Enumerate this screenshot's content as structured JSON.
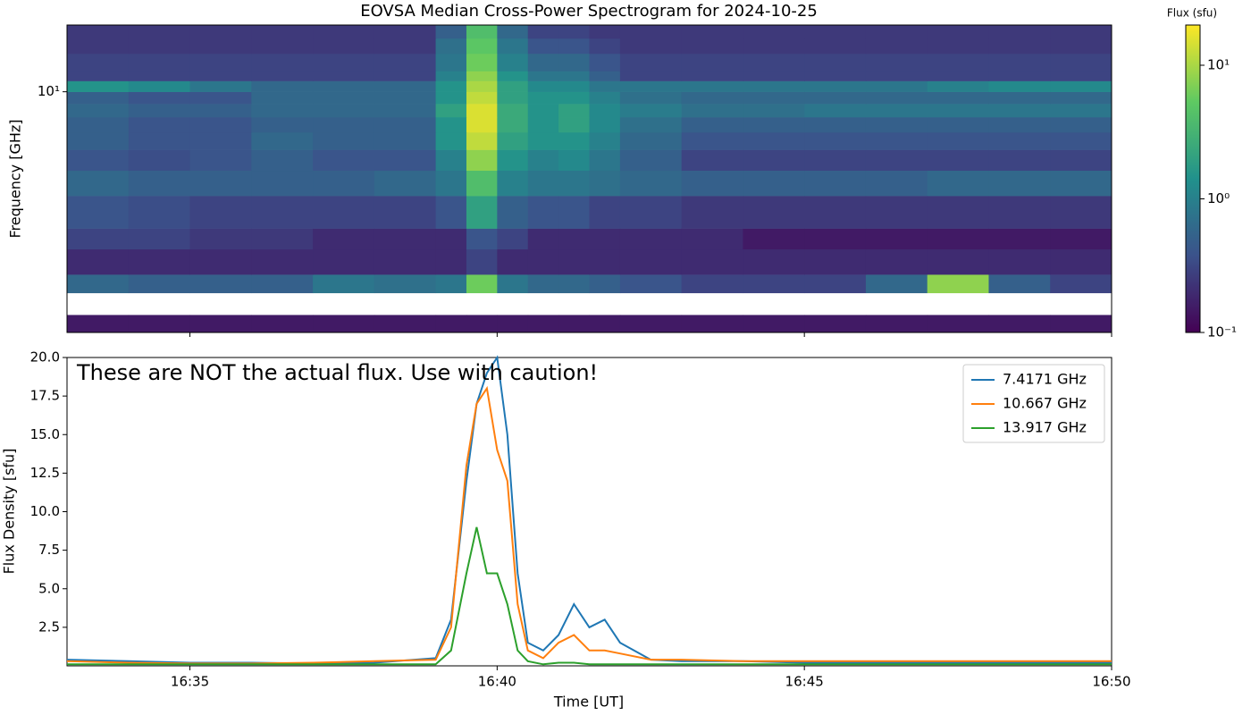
{
  "chart_data": [
    {
      "type": "heatmap",
      "title": "EOVSA Median Cross-Power Spectrogram for 2024-10-25",
      "ylabel": "Frequency [GHz]",
      "x_edges": [
        "16:33:00",
        "16:34:00",
        "16:35:00",
        "16:36:00",
        "16:37:00",
        "16:38:00",
        "16:39:00",
        "16:39:30",
        "16:40:00",
        "16:40:30",
        "16:41:00",
        "16:41:30",
        "16:42:00",
        "16:43:00",
        "16:44:00",
        "16:45:00",
        "16:46:00",
        "16:47:00",
        "16:48:00",
        "16:49:00",
        "16:50:00"
      ],
      "y_edges": [
        1.2,
        1.4,
        1.7,
        2,
        2.5,
        3,
        4,
        5,
        6,
        7,
        8,
        9,
        10,
        11,
        12,
        14,
        16,
        18
      ],
      "z": [
        [
          0.15,
          0.15,
          0.15,
          0.15,
          0.15,
          0.15,
          0.15,
          0.15,
          0.15,
          0.15,
          0.15,
          0.15,
          0.15,
          0.15,
          0.15,
          0.15,
          0.15,
          0.15,
          0.15,
          0.15
        ],
        [
          null,
          null,
          null,
          null,
          null,
          null,
          null,
          null,
          null,
          null,
          null,
          null,
          null,
          null,
          null,
          null,
          null,
          null,
          null,
          null
        ],
        [
          0.6,
          0.5,
          0.5,
          0.5,
          0.8,
          0.7,
          0.8,
          6,
          0.8,
          0.6,
          0.6,
          0.5,
          0.4,
          0.3,
          0.3,
          0.3,
          0.6,
          8,
          0.5,
          0.3
        ],
        [
          0.2,
          0.2,
          0.2,
          0.2,
          0.2,
          0.2,
          0.2,
          0.3,
          0.2,
          0.2,
          0.2,
          0.2,
          0.2,
          0.2,
          0.2,
          0.2,
          0.2,
          0.2,
          0.2,
          0.2
        ],
        [
          0.3,
          0.3,
          0.25,
          0.25,
          0.2,
          0.2,
          0.2,
          0.4,
          0.3,
          0.2,
          0.2,
          0.2,
          0.2,
          0.2,
          0.15,
          0.15,
          0.15,
          0.15,
          0.15,
          0.15
        ],
        [
          0.4,
          0.35,
          0.3,
          0.3,
          0.3,
          0.3,
          0.4,
          2,
          0.5,
          0.4,
          0.4,
          0.3,
          0.3,
          0.25,
          0.25,
          0.25,
          0.25,
          0.25,
          0.25,
          0.25
        ],
        [
          0.6,
          0.5,
          0.5,
          0.5,
          0.5,
          0.6,
          0.8,
          4,
          1,
          0.8,
          0.8,
          0.7,
          0.6,
          0.5,
          0.5,
          0.5,
          0.5,
          0.6,
          0.6,
          0.6
        ],
        [
          0.4,
          0.35,
          0.4,
          0.5,
          0.4,
          0.4,
          1,
          8,
          1.5,
          1,
          1.2,
          0.8,
          0.5,
          0.3,
          0.3,
          0.3,
          0.3,
          0.3,
          0.3,
          0.3
        ],
        [
          0.5,
          0.4,
          0.4,
          0.6,
          0.5,
          0.5,
          1.5,
          12,
          2,
          1.5,
          1.5,
          1,
          0.6,
          0.4,
          0.4,
          0.4,
          0.4,
          0.4,
          0.4,
          0.4
        ],
        [
          0.5,
          0.4,
          0.4,
          0.5,
          0.5,
          0.5,
          1.5,
          15,
          2.5,
          1.5,
          2,
          1.2,
          0.7,
          0.5,
          0.5,
          0.5,
          0.5,
          0.5,
          0.5,
          0.5
        ],
        [
          0.6,
          0.5,
          0.5,
          0.6,
          0.6,
          0.6,
          2,
          15,
          2.5,
          1.5,
          2,
          1.2,
          0.9,
          0.7,
          0.7,
          0.8,
          0.8,
          0.8,
          0.8,
          0.8
        ],
        [
          0.5,
          0.4,
          0.4,
          0.6,
          0.6,
          0.6,
          1.5,
          12,
          2,
          1.5,
          1.5,
          1,
          0.7,
          0.6,
          0.6,
          0.6,
          0.6,
          0.6,
          0.6,
          0.6
        ],
        [
          1.5,
          1.2,
          0.8,
          0.6,
          0.6,
          0.6,
          1.5,
          10,
          2,
          1.2,
          1.2,
          0.8,
          0.8,
          0.8,
          0.8,
          0.8,
          0.8,
          1,
          1.2,
          1.2
        ],
        [
          0.3,
          0.3,
          0.3,
          0.3,
          0.3,
          0.3,
          1,
          8,
          1.5,
          0.8,
          0.8,
          0.5,
          0.3,
          0.3,
          0.3,
          0.3,
          0.3,
          0.3,
          0.3,
          0.3
        ],
        [
          0.3,
          0.3,
          0.3,
          0.3,
          0.3,
          0.3,
          0.8,
          6,
          1,
          0.6,
          0.6,
          0.4,
          0.3,
          0.3,
          0.3,
          0.3,
          0.3,
          0.3,
          0.3,
          0.3
        ],
        [
          0.25,
          0.25,
          0.25,
          0.25,
          0.25,
          0.25,
          0.7,
          5,
          0.8,
          0.4,
          0.4,
          0.3,
          0.25,
          0.25,
          0.25,
          0.25,
          0.25,
          0.25,
          0.25,
          0.25
        ],
        [
          0.25,
          0.25,
          0.25,
          0.25,
          0.25,
          0.25,
          0.5,
          4,
          0.6,
          0.3,
          0.3,
          0.25,
          0.25,
          0.25,
          0.25,
          0.25,
          0.25,
          0.25,
          0.25,
          0.25
        ]
      ],
      "xlim": [
        "16:33:00",
        "16:50:00"
      ],
      "xticks": [
        "16:35:00",
        "16:40:00",
        "16:45:00",
        "16:50:00"
      ],
      "xtick_labels": false,
      "ylim": [
        1.2,
        18
      ],
      "yscale": "log",
      "yticks": [
        {
          "value": 10,
          "label": "10¹"
        }
      ],
      "colormap": "viridis",
      "colorbar": {
        "title": "Flux (sfu)",
        "scale": "log",
        "lim": [
          0.1,
          20
        ],
        "ticks": [
          {
            "value": 0.1,
            "label": "10⁻¹"
          },
          {
            "value": 1,
            "label": "10⁰"
          },
          {
            "value": 10,
            "label": "10¹"
          }
        ]
      }
    },
    {
      "type": "line",
      "annotation": "These are NOT the actual flux. Use with caution!",
      "xlabel": "Time [UT]",
      "ylabel": "Flux Density [sfu]",
      "x": [
        "16:33:00",
        "16:34:00",
        "16:35:00",
        "16:36:00",
        "16:37:00",
        "16:38:00",
        "16:39:00",
        "16:39:15",
        "16:39:30",
        "16:39:40",
        "16:39:50",
        "16:40:00",
        "16:40:10",
        "16:40:20",
        "16:40:30",
        "16:40:45",
        "16:41:00",
        "16:41:15",
        "16:41:30",
        "16:41:45",
        "16:42:00",
        "16:42:30",
        "16:43:00",
        "16:44:00",
        "16:45:00",
        "16:46:00",
        "16:47:00",
        "16:48:00",
        "16:49:00",
        "16:50:00"
      ],
      "series": [
        {
          "name": "7.4171 GHz",
          "color": "#1f77b4",
          "values": [
            0.4,
            0.3,
            0.2,
            0.2,
            0.15,
            0.2,
            0.5,
            3,
            12,
            17,
            19,
            20,
            15,
            6,
            1.5,
            1,
            2,
            4,
            2.5,
            3,
            1.5,
            0.4,
            0.3,
            0.3,
            0.2,
            0.2,
            0.2,
            0.2,
            0.2,
            0.2
          ]
        },
        {
          "name": "10.667 GHz",
          "color": "#ff7f0e",
          "values": [
            0.3,
            0.2,
            0.15,
            0.15,
            0.2,
            0.3,
            0.4,
            2.5,
            13,
            17,
            18,
            14,
            12,
            4,
            1,
            0.5,
            1.5,
            2,
            1,
            1,
            0.8,
            0.4,
            0.4,
            0.3,
            0.3,
            0.3,
            0.3,
            0.3,
            0.3,
            0.3
          ]
        },
        {
          "name": "13.917 GHz",
          "color": "#2ca02c",
          "values": [
            0.1,
            0.1,
            0.1,
            0.1,
            0.1,
            0.1,
            0.1,
            1,
            6,
            9,
            6,
            6,
            4,
            1,
            0.3,
            0.1,
            0.2,
            0.2,
            0.1,
            0.1,
            0.1,
            0.1,
            0.1,
            0.1,
            0.1,
            0.1,
            0.1,
            0.1,
            0.1,
            0.1
          ]
        }
      ],
      "xlim": [
        "16:33:00",
        "16:50:00"
      ],
      "xticks": [
        {
          "value": "16:35:00",
          "label": "16:35"
        },
        {
          "value": "16:40:00",
          "label": "16:40"
        },
        {
          "value": "16:45:00",
          "label": "16:45"
        },
        {
          "value": "16:50:00",
          "label": "16:50"
        }
      ],
      "ylim": [
        0,
        20
      ],
      "yticks": [
        2.5,
        {
          "value": 5,
          "label": "5.0"
        },
        7.5,
        {
          "value": 10,
          "label": "10.0"
        },
        12.5,
        {
          "value": 15,
          "label": "15.0"
        },
        17.5,
        {
          "value": 20,
          "label": "20.0"
        }
      ],
      "legend": "upper right"
    }
  ]
}
